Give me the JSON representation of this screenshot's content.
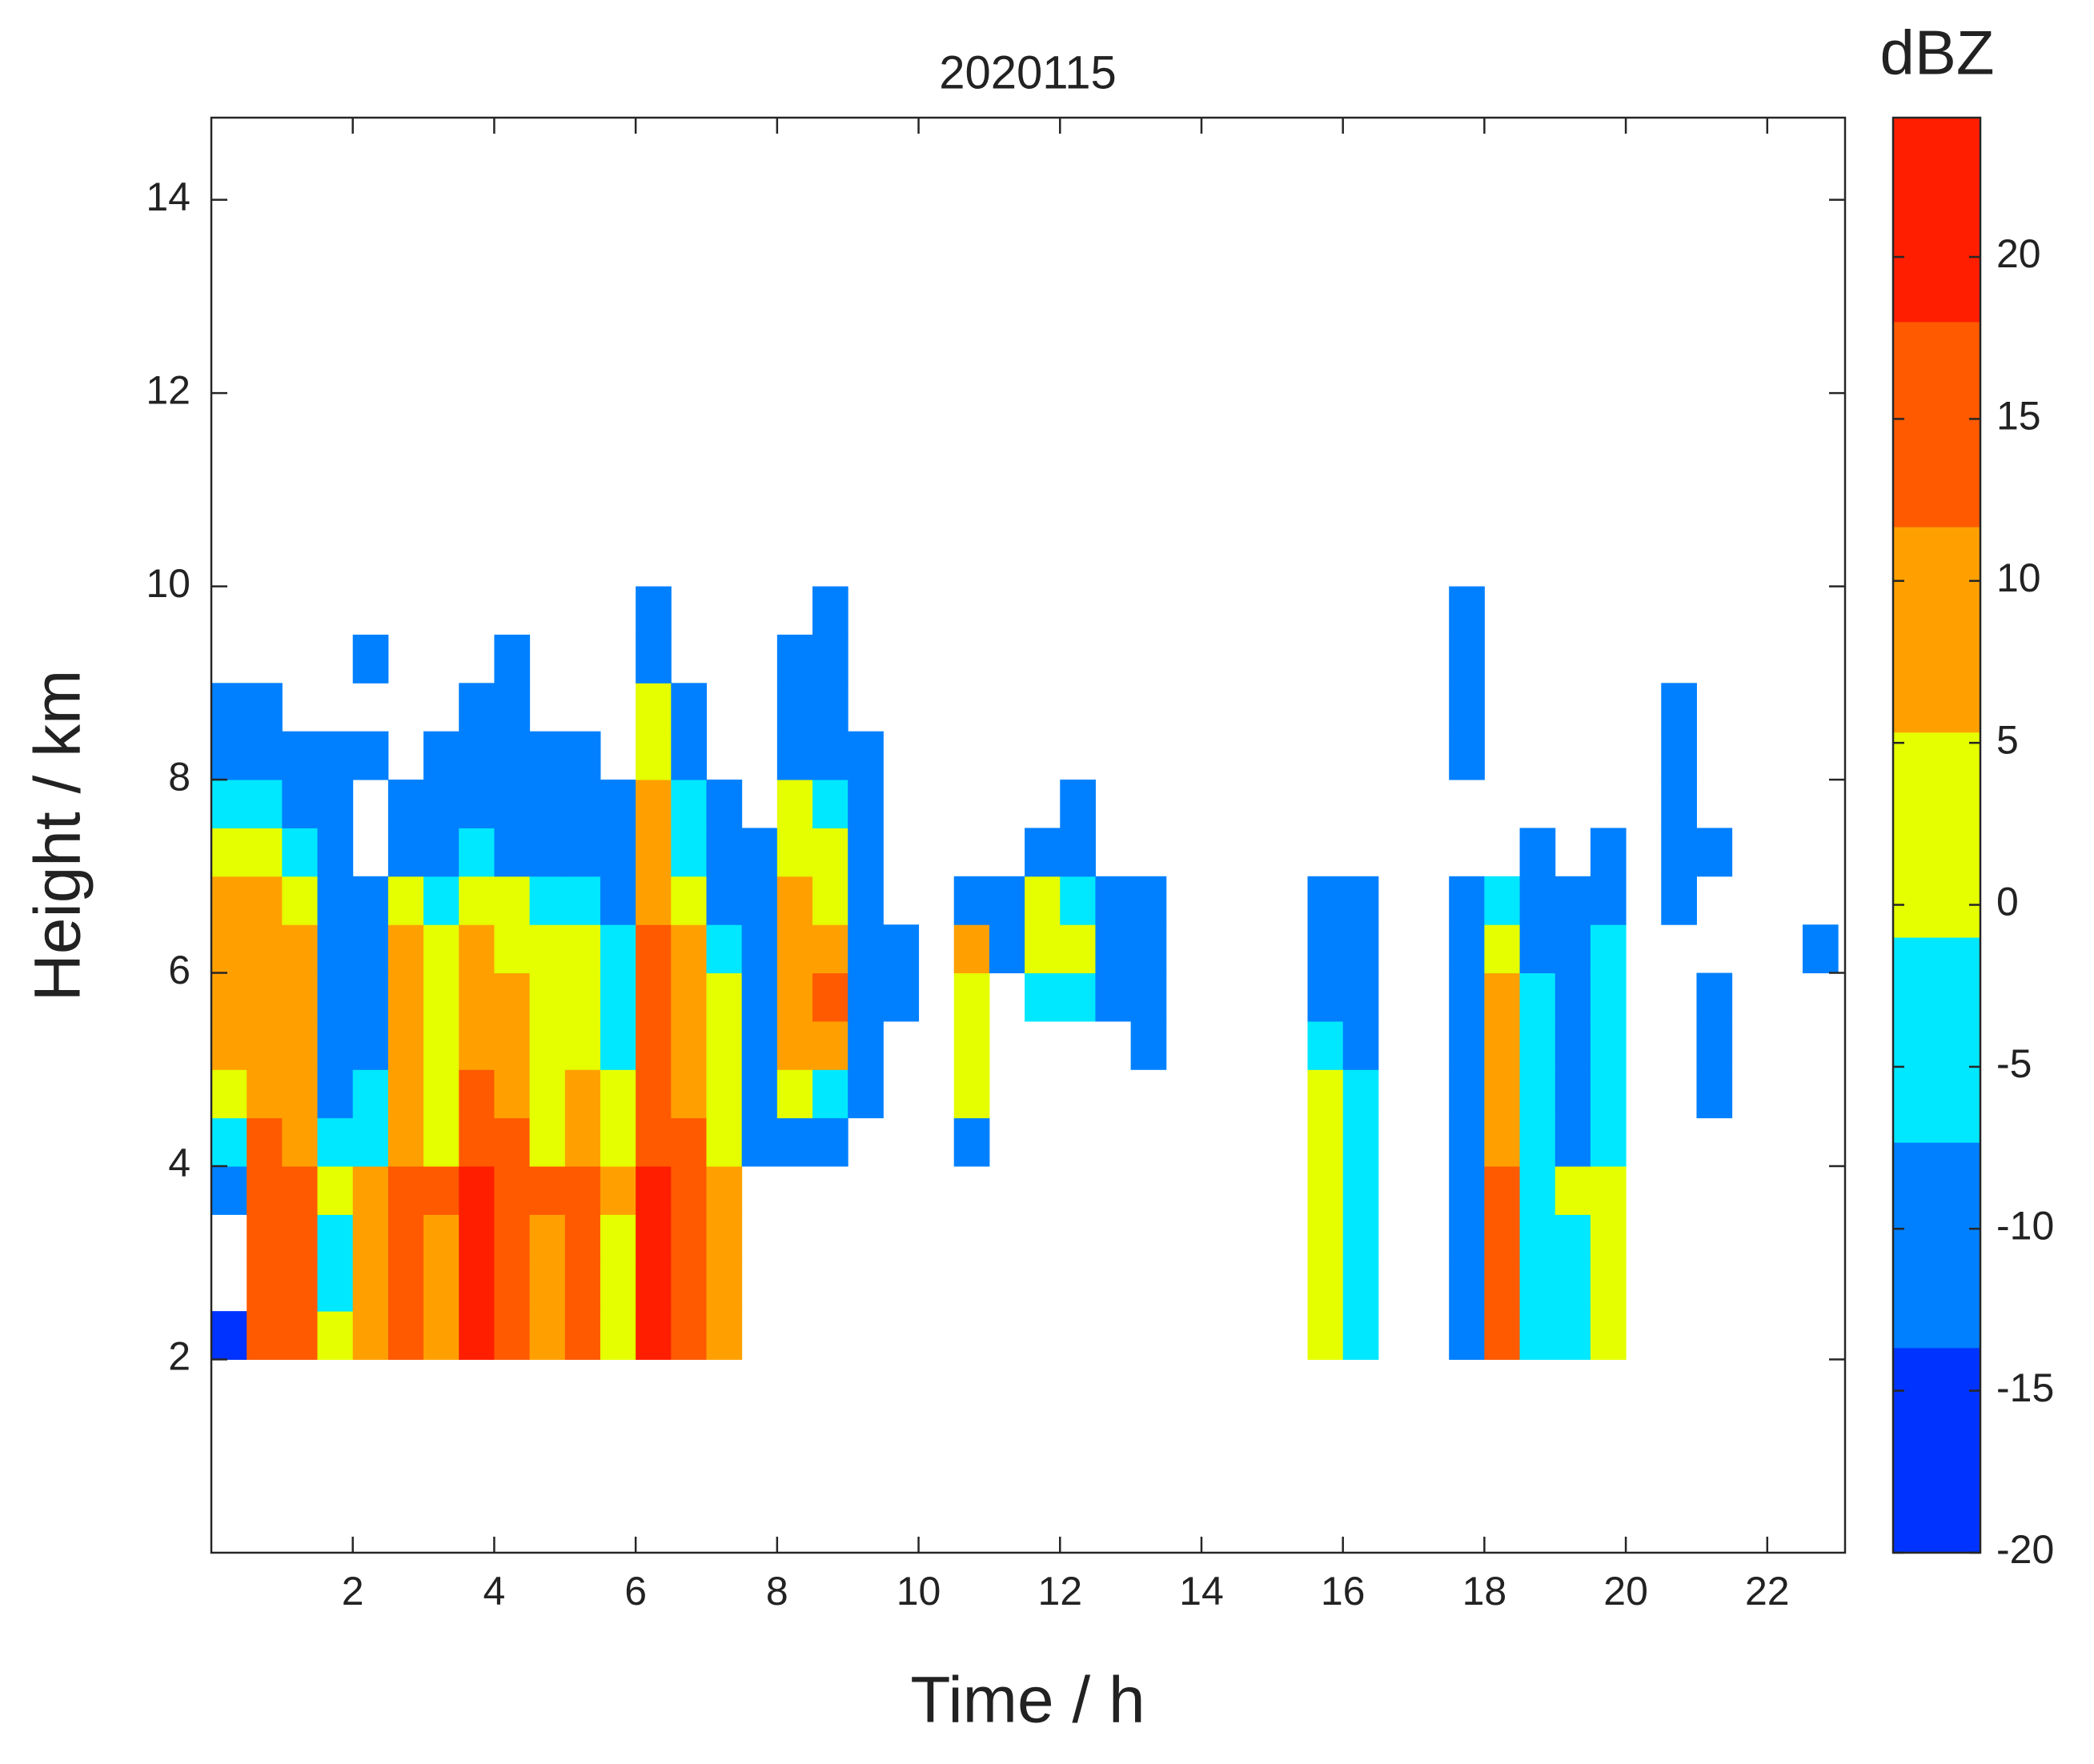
{
  "chart_data": {
    "type": "heatmap",
    "title": "2020115",
    "xlabel": "Time / h",
    "ylabel": "Height / km",
    "xlim": [
      0,
      23.1
    ],
    "ylim": [
      0,
      14.85
    ],
    "xticks": [
      2,
      4,
      6,
      8,
      10,
      12,
      14,
      16,
      18,
      20,
      22
    ],
    "yticks": [
      2,
      4,
      6,
      8,
      10,
      12,
      14
    ],
    "xbins": [
      0,
      0.5,
      1,
      1.5,
      2,
      2.5,
      3,
      3.5,
      4,
      4.5,
      5,
      5.5,
      6,
      6.5,
      7,
      7.5,
      8,
      8.5,
      9,
      9.5,
      10,
      10.5,
      11,
      11.5,
      12,
      12.5,
      13,
      13.5,
      14,
      14.5,
      15,
      15.5,
      16,
      16.5,
      17,
      17.5,
      18,
      18.5,
      19,
      19.5,
      20,
      20.5,
      21,
      21.5,
      22,
      22.5,
      23
    ],
    "ybins": [
      2,
      2.5,
      3,
      3.5,
      4,
      4.5,
      5,
      5.5,
      6,
      6.5,
      7,
      7.5,
      8,
      8.5,
      9,
      9.5,
      10
    ],
    "values": [
      [
        -15,
        15,
        15,
        0,
        10,
        12,
        10,
        20,
        15,
        10,
        14,
        5,
        20,
        15,
        10,
        null,
        null,
        null,
        null,
        null,
        null,
        null,
        null,
        null,
        null,
        null,
        null,
        null,
        null,
        null,
        null,
        0,
        -5,
        null,
        null,
        -10,
        12,
        -3,
        -5,
        2,
        null,
        null,
        null,
        null,
        null,
        null
      ],
      [
        null,
        15,
        16,
        -5,
        10,
        12,
        10,
        20,
        15,
        10,
        14,
        5,
        20,
        15,
        10,
        null,
        null,
        null,
        null,
        null,
        null,
        null,
        null,
        null,
        null,
        null,
        null,
        null,
        null,
        null,
        null,
        0,
        -5,
        null,
        null,
        -10,
        12,
        -5,
        -5,
        0,
        null,
        null,
        null,
        null,
        null,
        null
      ],
      [
        null,
        15,
        15,
        -3,
        8,
        12,
        10,
        20,
        14,
        10,
        14,
        5,
        20,
        15,
        8,
        null,
        null,
        null,
        null,
        null,
        null,
        null,
        null,
        null,
        null,
        null,
        null,
        null,
        null,
        null,
        null,
        2,
        -5,
        null,
        null,
        -10,
        12,
        -5,
        -5,
        0,
        null,
        null,
        null,
        null,
        null,
        null
      ],
      [
        -10,
        16,
        16,
        0,
        10,
        14,
        12,
        20,
        16,
        12,
        15,
        8,
        20,
        16,
        10,
        null,
        null,
        null,
        null,
        null,
        null,
        null,
        null,
        null,
        null,
        null,
        null,
        null,
        null,
        null,
        null,
        5,
        -3,
        null,
        null,
        -10,
        15,
        -3,
        0,
        5,
        null,
        null,
        null,
        null,
        null,
        null
      ],
      [
        -3,
        12,
        10,
        -5,
        -3,
        10,
        5,
        15,
        12,
        5,
        10,
        0,
        15,
        12,
        5,
        -10,
        -10,
        -10,
        null,
        null,
        null,
        -8,
        null,
        null,
        null,
        null,
        null,
        null,
        null,
        null,
        null,
        0,
        -5,
        null,
        null,
        -12,
        10,
        -5,
        -8,
        -3,
        null,
        null,
        null,
        null,
        null,
        null
      ],
      [
        0,
        10,
        10,
        -8,
        -5,
        10,
        5,
        12,
        10,
        5,
        8,
        0,
        14,
        10,
        3,
        -10,
        5,
        -5,
        -10,
        null,
        null,
        0,
        null,
        null,
        null,
        null,
        null,
        null,
        null,
        null,
        null,
        0,
        -5,
        null,
        null,
        -12,
        8,
        -5,
        -8,
        -5,
        null,
        null,
        -12,
        null,
        null,
        null
      ],
      [
        8,
        10,
        10,
        -8,
        -8,
        10,
        5,
        10,
        10,
        3,
        5,
        -3,
        14,
        10,
        3,
        -10,
        10,
        10,
        -10,
        null,
        null,
        2,
        null,
        null,
        null,
        null,
        -10,
        null,
        null,
        null,
        null,
        -3,
        -8,
        null,
        null,
        -12,
        8,
        -5,
        -8,
        -5,
        null,
        null,
        -12,
        null,
        null,
        null
      ],
      [
        10,
        10,
        10,
        -10,
        -10,
        10,
        3,
        10,
        8,
        3,
        3,
        -3,
        14,
        10,
        0,
        -10,
        10,
        12,
        -10,
        -12,
        null,
        3,
        null,
        -5,
        -3,
        -10,
        -8,
        null,
        null,
        null,
        null,
        -8,
        -8,
        null,
        null,
        -10,
        8,
        -5,
        -8,
        -3,
        null,
        null,
        -12,
        null,
        null,
        null
      ],
      [
        10,
        10,
        10,
        -10,
        -12,
        8,
        0,
        8,
        5,
        0,
        0,
        -5,
        12,
        8,
        -3,
        -10,
        10,
        8,
        -10,
        -12,
        null,
        10,
        -12,
        3,
        0,
        -10,
        -8,
        null,
        null,
        null,
        null,
        -10,
        -8,
        null,
        null,
        -10,
        5,
        -8,
        -10,
        -5,
        null,
        null,
        null,
        null,
        null,
        -12
      ],
      [
        8,
        8,
        5,
        -12,
        -12,
        5,
        -5,
        0,
        0,
        -5,
        -5,
        -8,
        10,
        5,
        -8,
        -12,
        10,
        5,
        -12,
        null,
        null,
        -8,
        -12,
        0,
        -5,
        -12,
        -12,
        null,
        null,
        null,
        null,
        -12,
        -12,
        null,
        null,
        -12,
        -5,
        -12,
        -12,
        -10,
        null,
        -12,
        null,
        null,
        null,
        null
      ],
      [
        0,
        3,
        -5,
        -12,
        null,
        -10,
        -8,
        -5,
        -8,
        -8,
        -8,
        -10,
        8,
        -3,
        -12,
        -12,
        5,
        0,
        -12,
        null,
        null,
        null,
        null,
        -10,
        -12,
        null,
        null,
        null,
        null,
        null,
        null,
        null,
        null,
        null,
        null,
        null,
        null,
        -12,
        null,
        -12,
        null,
        -12,
        -10,
        null,
        null,
        null
      ],
      [
        -5,
        -5,
        -8,
        -12,
        null,
        -12,
        -12,
        -8,
        -10,
        -10,
        -10,
        -12,
        8,
        -5,
        -12,
        null,
        0,
        -3,
        -12,
        null,
        null,
        null,
        null,
        null,
        -12,
        null,
        null,
        null,
        null,
        null,
        null,
        null,
        null,
        null,
        null,
        null,
        null,
        null,
        null,
        null,
        null,
        -12,
        null,
        null,
        null,
        null
      ],
      [
        -10,
        -10,
        -12,
        -12,
        -12,
        null,
        -12,
        -10,
        -12,
        -12,
        -12,
        null,
        3,
        -8,
        null,
        null,
        -8,
        -8,
        -12,
        null,
        null,
        null,
        null,
        null,
        null,
        null,
        null,
        null,
        null,
        null,
        null,
        null,
        null,
        null,
        null,
        -12,
        null,
        null,
        null,
        null,
        null,
        -10,
        null,
        null,
        null,
        null
      ],
      [
        -12,
        -12,
        null,
        null,
        null,
        null,
        null,
        -12,
        -12,
        null,
        null,
        null,
        0,
        -12,
        null,
        null,
        -10,
        -10,
        null,
        null,
        null,
        null,
        null,
        null,
        null,
        null,
        null,
        null,
        null,
        null,
        null,
        null,
        null,
        null,
        null,
        -12,
        null,
        null,
        null,
        null,
        null,
        -12,
        null,
        null,
        null,
        null
      ],
      [
        null,
        null,
        null,
        null,
        -12,
        null,
        null,
        null,
        -12,
        null,
        null,
        null,
        -8,
        null,
        null,
        null,
        -12,
        -12,
        null,
        null,
        null,
        null,
        null,
        null,
        null,
        null,
        null,
        null,
        null,
        null,
        null,
        null,
        null,
        null,
        null,
        -12,
        null,
        null,
        null,
        null,
        null,
        null,
        null,
        null,
        null,
        null
      ],
      [
        null,
        null,
        null,
        null,
        null,
        null,
        null,
        null,
        null,
        null,
        null,
        null,
        -12,
        null,
        null,
        null,
        null,
        -12,
        null,
        null,
        null,
        null,
        null,
        null,
        null,
        null,
        null,
        null,
        null,
        null,
        null,
        null,
        null,
        null,
        null,
        -12,
        null,
        null,
        null,
        null,
        null,
        null,
        null,
        null,
        null,
        null
      ]
    ],
    "colorbar": {
      "label": "dBZ",
      "lim": [
        -20,
        24.3
      ],
      "levels": [
        -20,
        -13.67,
        -7.33,
        -1,
        5.33,
        11.67,
        18,
        24.3
      ],
      "colors": [
        "#0033ff",
        "#0080ff",
        "#00e8ff",
        "#e5ff00",
        "#ffa000",
        "#ff5a00",
        "#ff1e00"
      ],
      "ticks": [
        -20,
        -15,
        -10,
        -5,
        0,
        5,
        10,
        15,
        20
      ]
    }
  }
}
